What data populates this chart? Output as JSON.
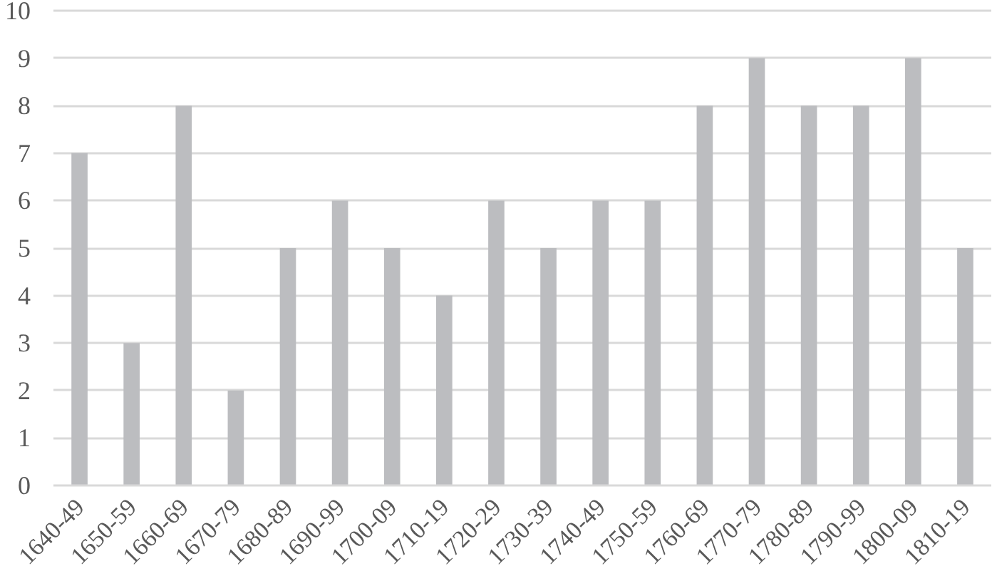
{
  "chart_data": {
    "type": "bar",
    "categories": [
      "1640-49",
      "1650-59",
      "1660-69",
      "1670-79",
      "1680-89",
      "1690-99",
      "1700-09",
      "1710-19",
      "1720-29",
      "1730-39",
      "1740-49",
      "1750-59",
      "1760-69",
      "1770-79",
      "1780-89",
      "1790-99",
      "1800-09",
      "1810-19"
    ],
    "values": [
      7,
      3,
      8,
      2,
      5,
      6,
      5,
      4,
      6,
      5,
      6,
      6,
      8,
      9,
      8,
      8,
      9,
      5
    ],
    "color": "#bcbdc0",
    "ylim": [
      0,
      10
    ],
    "yticks": [
      0,
      1,
      2,
      3,
      4,
      5,
      6,
      7,
      8,
      9,
      10
    ],
    "grid": "y"
  }
}
